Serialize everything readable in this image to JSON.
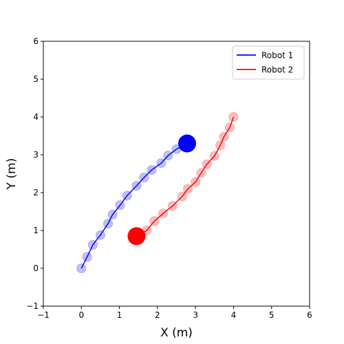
{
  "chart_data": {
    "type": "line",
    "title": "",
    "xlabel": "X (m)",
    "ylabel": "Y (m)",
    "xlim": [
      -1,
      6
    ],
    "ylim": [
      -1,
      6
    ],
    "xticks": [
      -1,
      0,
      1,
      2,
      3,
      4,
      5,
      6
    ],
    "yticks": [
      -1,
      0,
      1,
      2,
      3,
      4,
      5,
      6
    ],
    "grid": false,
    "legend_position": "top-right",
    "series": [
      {
        "name": "Robot 1",
        "color": "#0000ff",
        "marker_color": "#aaaaf5",
        "x": [
          0.0,
          0.15,
          0.3,
          0.5,
          0.7,
          0.82,
          1.02,
          1.2,
          1.45,
          1.65,
          1.85,
          2.1,
          2.28,
          2.5,
          2.78
        ],
        "y": [
          0.0,
          0.3,
          0.62,
          0.88,
          1.18,
          1.42,
          1.67,
          1.92,
          2.18,
          2.4,
          2.6,
          2.78,
          2.98,
          3.15,
          3.3
        ],
        "current": {
          "x": 2.78,
          "y": 3.3
        }
      },
      {
        "name": "Robot 2",
        "color": "#ff0000",
        "marker_color": "#f5aaaa",
        "x": [
          4.0,
          3.9,
          3.75,
          3.65,
          3.5,
          3.3,
          3.15,
          3.0,
          2.8,
          2.65,
          2.4,
          2.15,
          1.92,
          1.72,
          1.45
        ],
        "y": [
          4.0,
          3.72,
          3.48,
          3.25,
          2.97,
          2.75,
          2.52,
          2.28,
          2.1,
          1.9,
          1.65,
          1.45,
          1.25,
          1.0,
          0.85
        ],
        "current": {
          "x": 1.45,
          "y": 0.85
        }
      }
    ]
  }
}
